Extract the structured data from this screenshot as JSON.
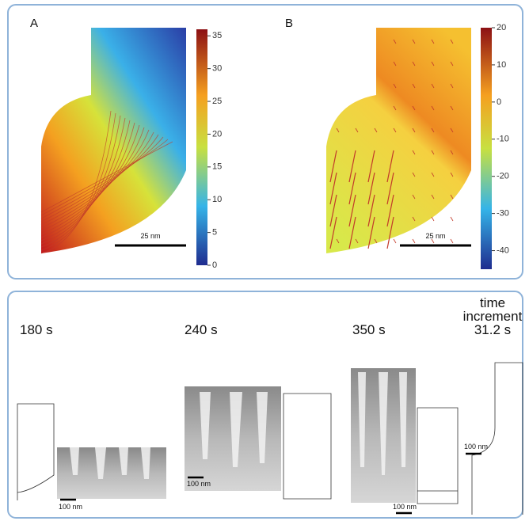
{
  "panels": [
    {
      "label": "A",
      "colorbar": {
        "range": [
          0,
          36
        ],
        "ticks": [
          0,
          5,
          10,
          15,
          20,
          25,
          30,
          35
        ]
      },
      "scale_bar": "25 nm"
    },
    {
      "label": "B",
      "colorbar": {
        "range": [
          -45,
          20
        ],
        "ticks": [
          -40,
          -30,
          -20,
          -10,
          0,
          10,
          20
        ]
      },
      "scale_bar": "25 nm"
    }
  ],
  "frames": [
    {
      "time": "180 s",
      "scale_bar": "100 nm"
    },
    {
      "time": "240 s",
      "scale_bar": "100 nm"
    },
    {
      "time": "350 s",
      "scale_bar": "100 nm"
    },
    {
      "time": "time increment 31.2 s",
      "scale_bar": "100 nm"
    }
  ]
}
